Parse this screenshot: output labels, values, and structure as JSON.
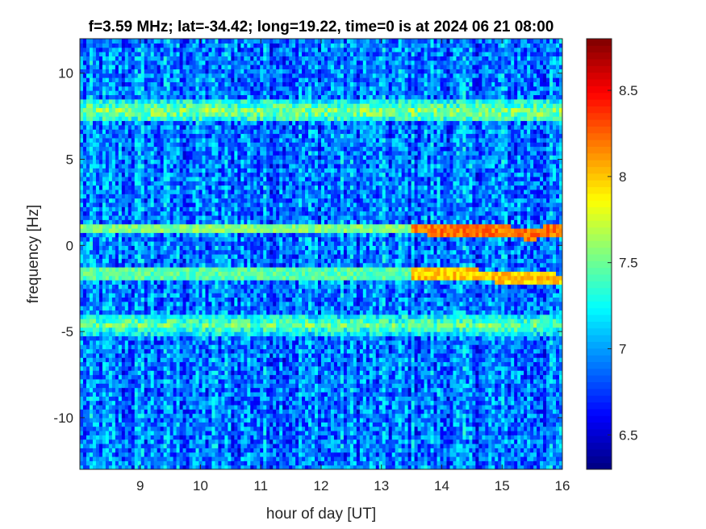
{
  "chart_data": {
    "type": "heatmap",
    "title": "f=3.59 MHz;  lat=-34.42; long=19.22, time=0 is at 2024 06 21 08:00",
    "xlabel": "hour of day [UT]",
    "ylabel": "frequency [Hz]",
    "xlim": [
      8.0,
      16.0
    ],
    "ylim": [
      -13.0,
      12.0
    ],
    "x_ticks": [
      9,
      10,
      11,
      12,
      13,
      14,
      15,
      16
    ],
    "y_ticks": [
      -10,
      -5,
      0,
      5,
      10
    ],
    "x_tick_labels": [
      "9",
      "10",
      "11",
      "12",
      "13",
      "14",
      "15",
      "16"
    ],
    "y_tick_labels": [
      "-10",
      "-5",
      "0",
      "5",
      "10"
    ],
    "colorbar": {
      "range": [
        6.3,
        8.8
      ],
      "ticks": [
        6.5,
        7,
        7.5,
        8,
        8.5
      ],
      "tick_labels": [
        "6.5",
        "7",
        "7.5",
        "8",
        "8.5"
      ],
      "colormap": "jet"
    },
    "features": [
      {
        "kind": "horizontal-band",
        "y": 7.8,
        "level": 7.6
      },
      {
        "kind": "horizontal-band",
        "y": -4.6,
        "level": 7.5
      },
      {
        "kind": "trace",
        "points": [
          [
            8.0,
            1.0
          ],
          [
            13.5,
            1.0
          ],
          [
            14.5,
            0.9
          ],
          [
            15.0,
            0.8
          ],
          [
            15.5,
            0.7
          ],
          [
            16.0,
            0.9
          ]
        ],
        "level": 8.2
      },
      {
        "kind": "trace",
        "points": [
          [
            8.0,
            -1.6
          ],
          [
            13.5,
            -1.6
          ],
          [
            14.5,
            -1.7
          ],
          [
            15.0,
            -1.8
          ],
          [
            15.5,
            -1.9
          ],
          [
            16.0,
            -2.0
          ]
        ],
        "level": 8.0
      }
    ],
    "background_level": 6.9,
    "grid": false,
    "legend": "none"
  }
}
